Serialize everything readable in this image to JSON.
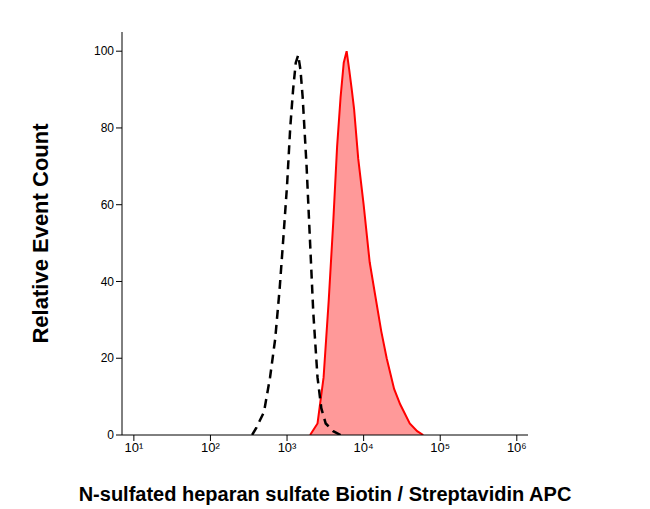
{
  "chart_data": {
    "type": "histogram",
    "x_label": "N-sulfated heparan sulfate Biotin / Streptavidin APC",
    "y_label": "Relative Event Count",
    "log": "x",
    "grid": false,
    "xlim": [
      7,
      1400000
    ],
    "xticks": [
      {
        "value": 10,
        "label": "10¹"
      },
      {
        "value": 100,
        "label": "10²"
      },
      {
        "value": 1000,
        "label": "10³"
      },
      {
        "value": 10000,
        "label": "10⁴"
      },
      {
        "value": 100000,
        "label": "10⁵"
      },
      {
        "value": 1000000,
        "label": "10⁶"
      }
    ],
    "ylim": [
      0,
      105
    ],
    "yticks": [
      0,
      20,
      40,
      60,
      80,
      100
    ],
    "series": [
      {
        "type": "line",
        "color": "#000000",
        "line_style": "dashed",
        "x": [
          350,
          400,
          500,
          600,
          700,
          800,
          900,
          1000,
          1100,
          1200,
          1300,
          1400,
          1500,
          1600,
          1800,
          2000,
          2200,
          2500,
          2800,
          3200,
          4000,
          5000
        ],
        "values": [
          0,
          2,
          6,
          15,
          25,
          38,
          52,
          65,
          80,
          90,
          97,
          99,
          95,
          88,
          70,
          50,
          32,
          15,
          7,
          3,
          1,
          0
        ]
      },
      {
        "type": "area",
        "color": "#ff0000",
        "line_style": "solid",
        "x": [
          2000,
          2500,
          3000,
          3500,
          4000,
          4500,
          5000,
          5500,
          6000,
          6500,
          7000,
          7500,
          8500,
          10000,
          12000,
          14000,
          17000,
          20000,
          25000,
          30000,
          40000,
          50000,
          60000
        ],
        "values": [
          0,
          3,
          15,
          35,
          55,
          75,
          88,
          97,
          100,
          95,
          90,
          85,
          72,
          60,
          45,
          37,
          27,
          20,
          12,
          8,
          3,
          1,
          0
        ]
      }
    ]
  }
}
